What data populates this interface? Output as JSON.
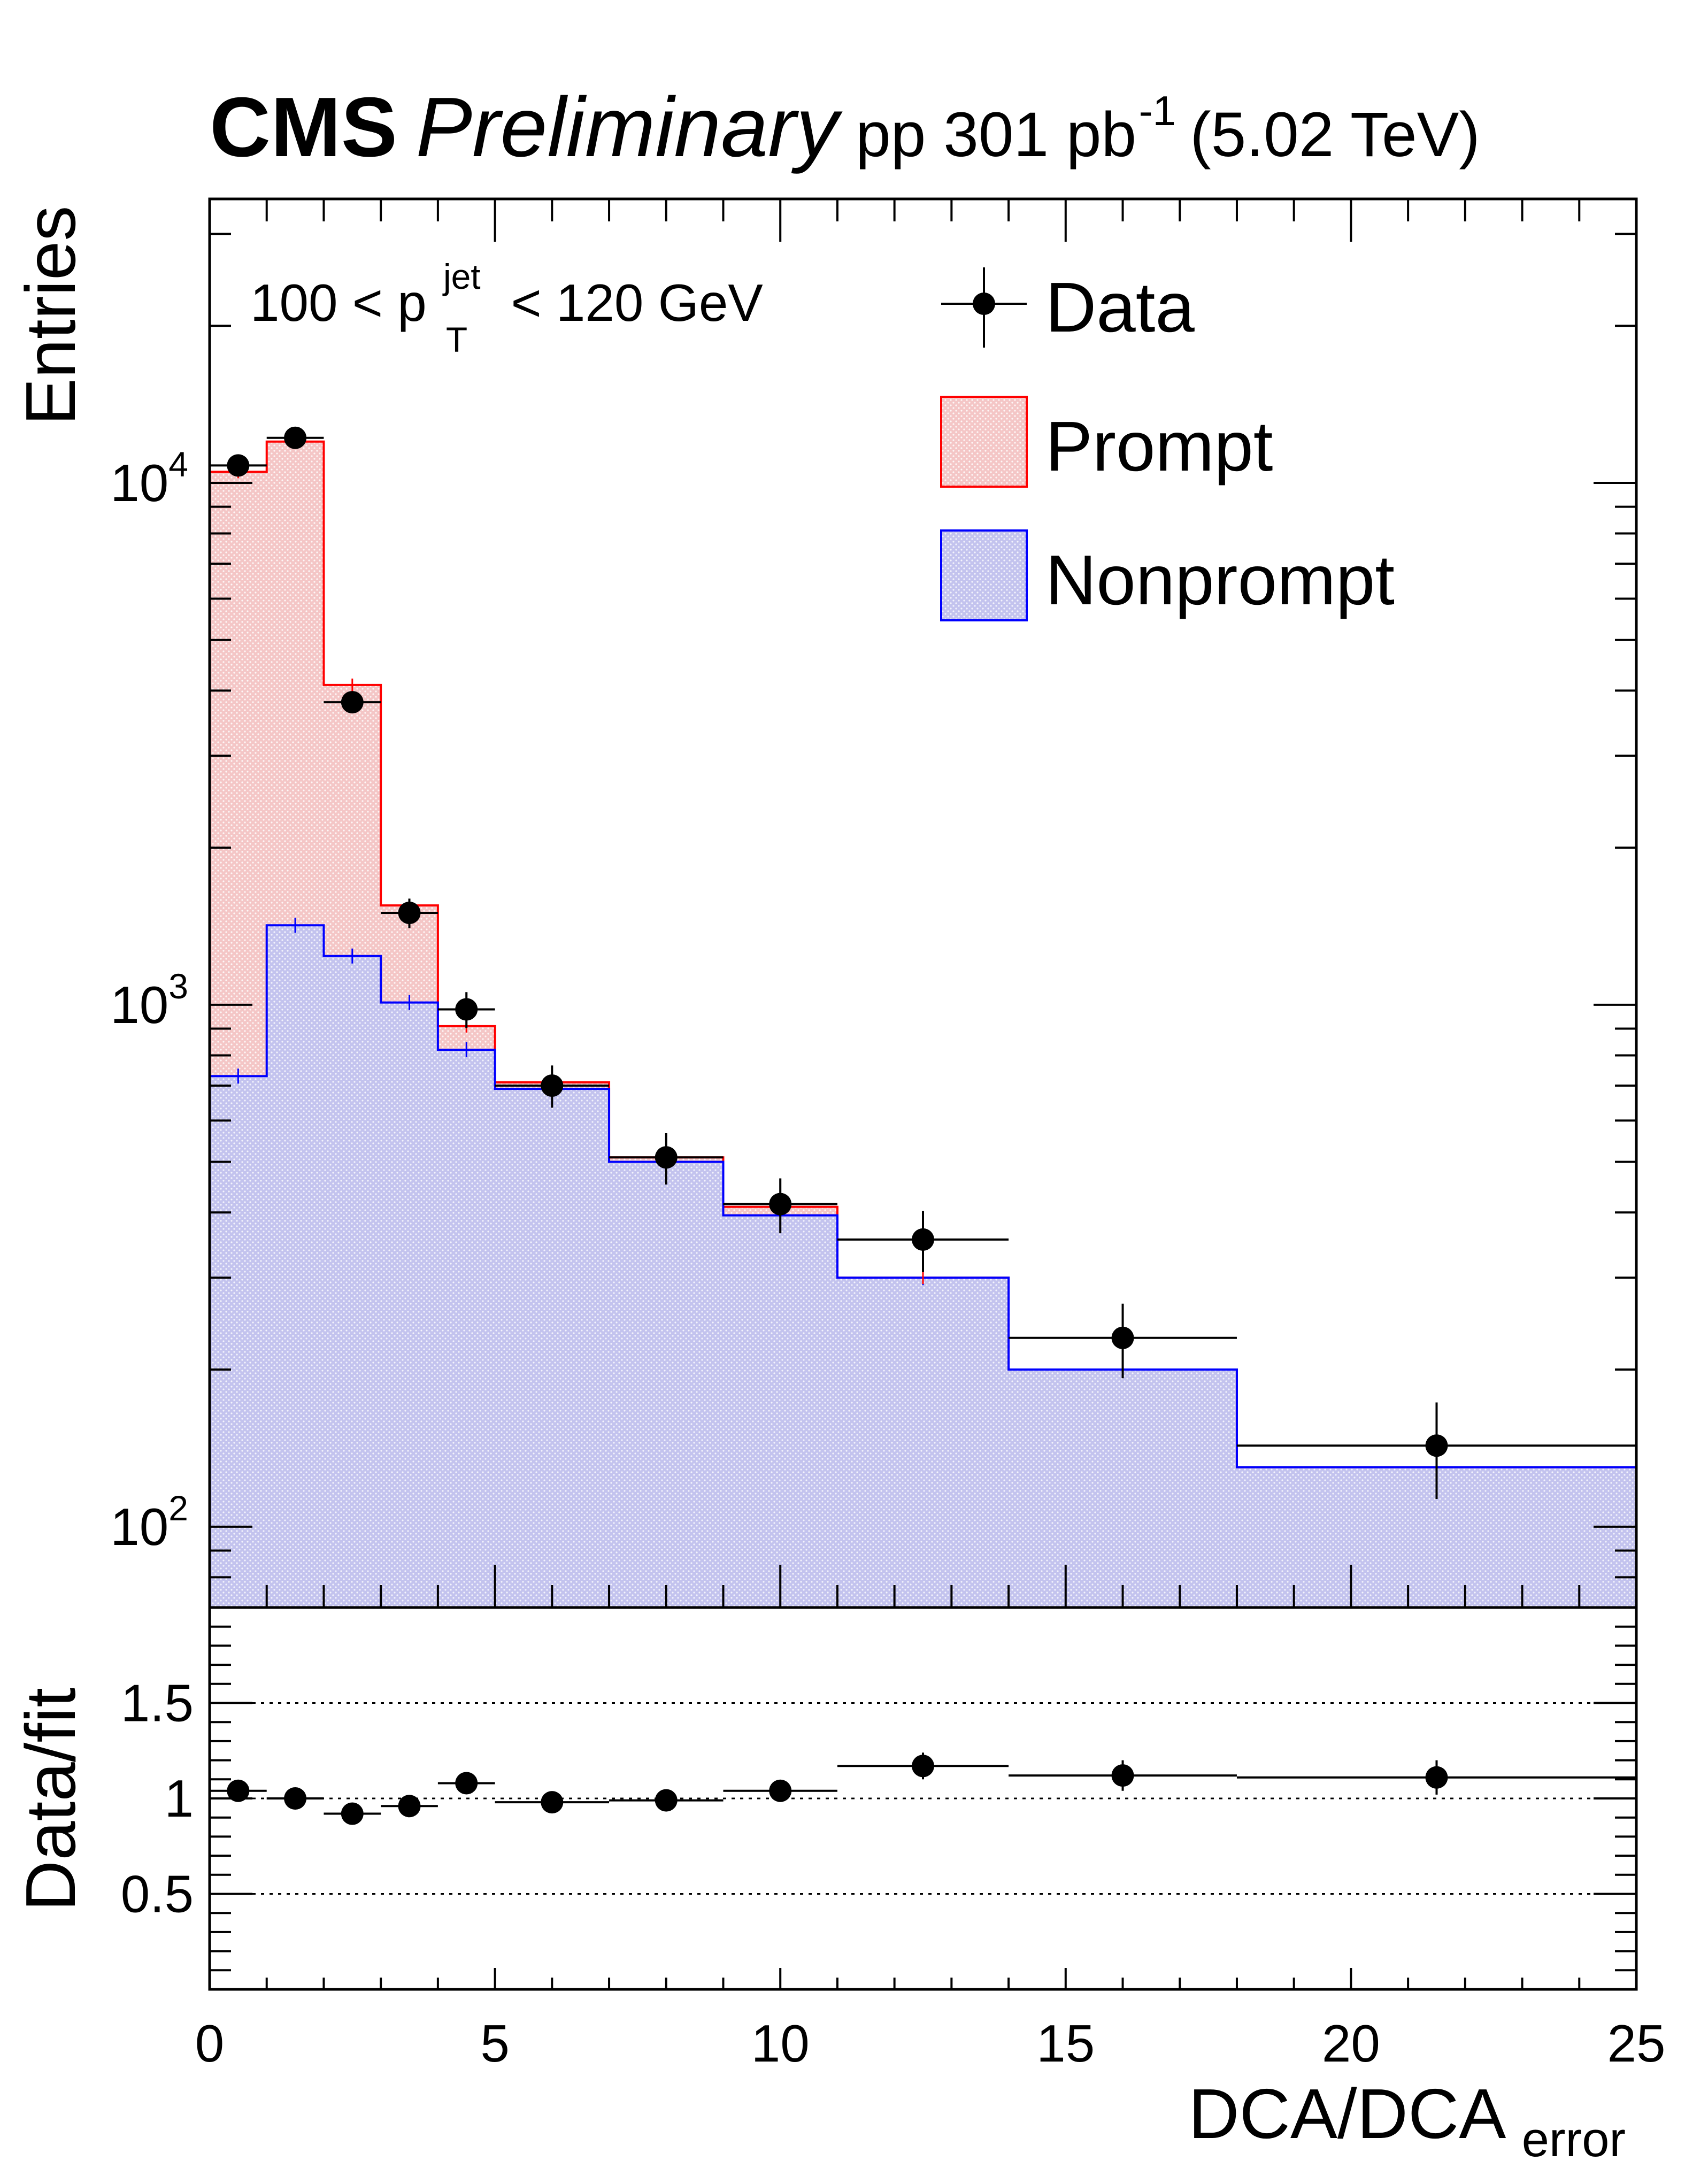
{
  "header": {
    "experiment": "CMS",
    "status": "Preliminary",
    "lumi_prefix": "pp 301 pb",
    "lumi_exp": "-1",
    "energy": "(5.02 TeV)"
  },
  "annotation": {
    "prefix": "100 < p",
    "sup": "jet",
    "sub": "T",
    "suffix": " < 120 GeV"
  },
  "colors": {
    "prompt_line": "#ff0000",
    "prompt_fill": "#f4c6c6",
    "nonprompt_line": "#0000ff",
    "nonprompt_fill": "#c3c3ee",
    "data": "#000000"
  },
  "chart_data": [
    {
      "type": "histogram",
      "panel": "main",
      "ylabel": "Entries",
      "yscale": "log",
      "ylim": [
        70,
        35000
      ],
      "xlim": [
        0,
        25
      ],
      "ytick_labels": [
        {
          "base": "10",
          "exp": "2",
          "value": 100
        },
        {
          "base": "10",
          "exp": "3",
          "value": 1000
        },
        {
          "base": "10",
          "exp": "4",
          "value": 10000
        }
      ],
      "bin_edges": [
        0,
        1,
        2,
        3,
        4,
        5,
        7,
        9,
        11,
        14,
        18,
        25
      ],
      "legend": {
        "position": "top-right",
        "entries": [
          "Data",
          "Prompt",
          "Nonprompt"
        ]
      },
      "series": [
        {
          "name": "Prompt",
          "kind": "stacked-total",
          "values": [
            10500,
            12000,
            4100,
            1550,
            910,
            710,
            510,
            410,
            300,
            200,
            130
          ]
        },
        {
          "name": "Nonprompt",
          "kind": "stack-component",
          "values": [
            730,
            1420,
            1240,
            1010,
            820,
            690,
            500,
            395,
            300,
            200,
            130
          ]
        },
        {
          "name": "Data",
          "kind": "points",
          "x": [
            0.5,
            1.5,
            2.5,
            3.5,
            4.5,
            6,
            8,
            10,
            12.5,
            16,
            21.5
          ],
          "values": [
            10800,
            12200,
            3800,
            1500,
            980,
            700,
            510,
            415,
            355,
            230,
            143
          ],
          "xerr": [
            0.5,
            0.5,
            0.5,
            0.5,
            0.5,
            1,
            1,
            1,
            1.5,
            2,
            3.5
          ],
          "yerr": [
            105,
            110,
            62,
            39,
            31,
            26,
            23,
            20,
            19,
            15,
            12
          ]
        }
      ]
    },
    {
      "type": "scatter",
      "panel": "ratio",
      "ylabel": "Data/fit",
      "xlabel": "DCA/DCA",
      "xlabel_sub": "error",
      "xlim": [
        0,
        25
      ],
      "ylim": [
        0,
        2
      ],
      "xtick_labels": [
        "0",
        "5",
        "10",
        "15",
        "20",
        "25"
      ],
      "ytick_labels": [
        "0.5",
        "1",
        "1.5"
      ],
      "reference_lines": [
        0.5,
        1,
        1.5
      ],
      "x": [
        0.5,
        1.5,
        2.5,
        3.5,
        4.5,
        6,
        8,
        10,
        12.5,
        16,
        21.5
      ],
      "xerr": [
        0.5,
        0.5,
        0.5,
        0.5,
        0.5,
        1,
        1,
        1,
        1.5,
        2,
        3.5
      ],
      "values": [
        1.04,
        1.0,
        0.92,
        0.96,
        1.08,
        0.98,
        0.99,
        1.04,
        1.17,
        1.12,
        1.11
      ],
      "yerr": [
        0.02,
        0.02,
        0.03,
        0.03,
        0.04,
        0.04,
        0.05,
        0.05,
        0.07,
        0.08,
        0.09
      ]
    }
  ]
}
